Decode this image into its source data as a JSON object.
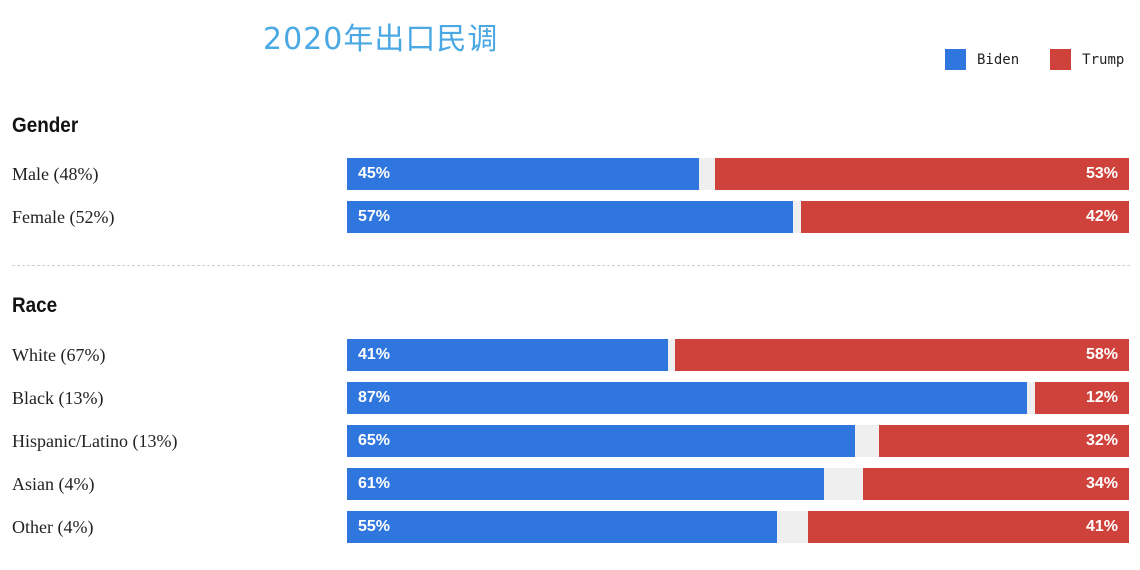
{
  "title": "2020年出口民调",
  "legend": [
    {
      "label": "Biden",
      "color": "#2f76df"
    },
    {
      "label": "Trump",
      "color": "#cf423b"
    }
  ],
  "chart_data": {
    "type": "bar",
    "orientation": "horizontal",
    "stacked": true,
    "value_unit": "%",
    "xlim": [
      0,
      100
    ],
    "groups": [
      {
        "name": "Gender",
        "categories": [
          "Male (48%)",
          "Female (52%)"
        ],
        "series": [
          {
            "name": "Biden",
            "values": [
              45,
              57
            ],
            "labels": [
              "45%",
              "57%"
            ]
          },
          {
            "name": "Trump",
            "values": [
              53,
              42
            ],
            "labels": [
              "53%",
              "42%"
            ]
          }
        ]
      },
      {
        "name": "Race",
        "categories": [
          "White (67%)",
          "Black (13%)",
          "Hispanic/Latino (13%)",
          "Asian (4%)",
          "Other (4%)"
        ],
        "series": [
          {
            "name": "Biden",
            "values": [
              41,
              87,
              65,
              61,
              55
            ],
            "labels": [
              "41%",
              "87%",
              "65%",
              "61%",
              "55%"
            ]
          },
          {
            "name": "Trump",
            "values": [
              58,
              12,
              32,
              34,
              41
            ],
            "labels": [
              "58%",
              "12%",
              "32%",
              "34%",
              "41%"
            ]
          }
        ]
      }
    ]
  }
}
